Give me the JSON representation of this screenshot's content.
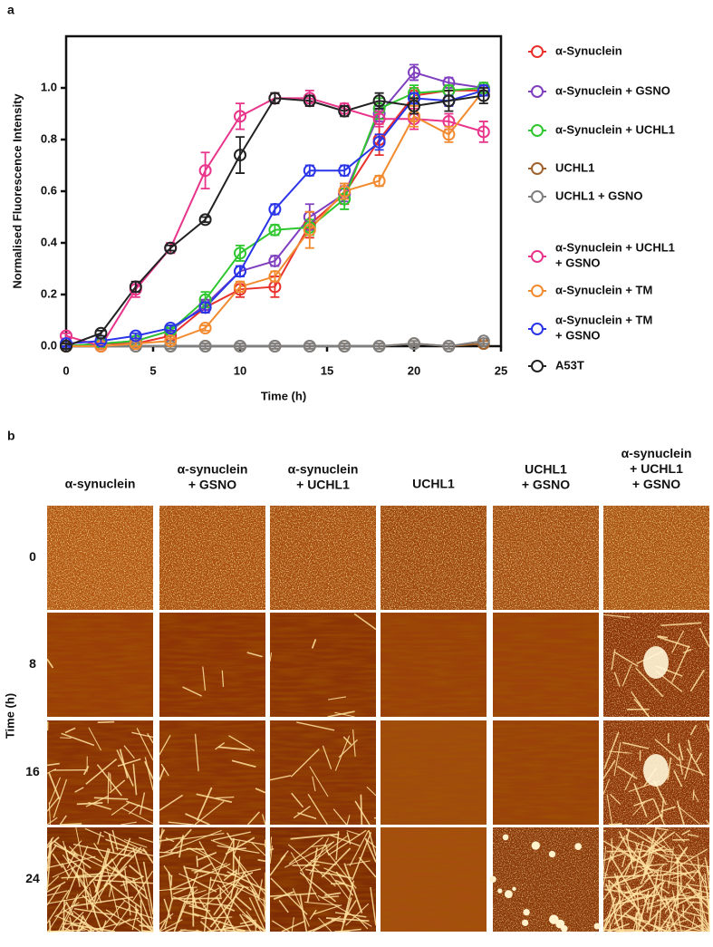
{
  "panel_labels": [
    "a",
    "b"
  ],
  "chart_data": {
    "type": "line",
    "xlabel": "Time (h)",
    "ylabel": "Normalised Fluorescence Intensity",
    "x": [
      0,
      2,
      4,
      6,
      8,
      10,
      12,
      14,
      16,
      18,
      20,
      22,
      24
    ],
    "xlim": [
      0,
      25
    ],
    "xticks": [
      0,
      5,
      10,
      15,
      20,
      25
    ],
    "ylim": [
      0,
      1.2
    ],
    "yticks": [
      {
        "value": 0,
        "label": "0.0"
      },
      {
        "value": 0.2,
        "label": "0.2"
      },
      {
        "value": 0.4,
        "label": "0.4"
      },
      {
        "value": 0.6,
        "label": "0.6"
      },
      {
        "value": 0.8,
        "label": "0.8"
      },
      {
        "value": 1.0,
        "label": "1.0"
      }
    ],
    "legend": "right",
    "series": [
      {
        "name": "α-Synuclein",
        "color": "#e8312c",
        "values": [
          0.0,
          0.01,
          0.01,
          0.04,
          0.15,
          0.22,
          0.23,
          0.47,
          0.59,
          0.8,
          0.97,
          0.99,
          0.99
        ],
        "errors": [
          0.01,
          0.01,
          0.01,
          0.01,
          0.02,
          0.03,
          0.04,
          0.05,
          0.04,
          0.06,
          0.03,
          0.02,
          0.02
        ]
      },
      {
        "name": "α-Synuclein + GSNO",
        "color": "#7f3fbf",
        "values": [
          0.0,
          0.01,
          0.02,
          0.06,
          0.16,
          0.29,
          0.33,
          0.5,
          0.59,
          0.9,
          1.06,
          1.02,
          1.0
        ],
        "errors": [
          0.01,
          0.01,
          0.01,
          0.01,
          0.02,
          0.02,
          0.02,
          0.05,
          0.03,
          0.03,
          0.03,
          0.02,
          0.02
        ]
      },
      {
        "name": "α-Synuclein + UCHL1",
        "color": "#2fc72f",
        "values": [
          0.0,
          0.01,
          0.02,
          0.06,
          0.18,
          0.36,
          0.45,
          0.46,
          0.57,
          0.92,
          0.98,
          0.99,
          1.0
        ],
        "errors": [
          0.01,
          0.01,
          0.01,
          0.01,
          0.03,
          0.03,
          0.02,
          0.03,
          0.04,
          0.04,
          0.03,
          0.02,
          0.02
        ]
      },
      {
        "name": "UCHL1",
        "color": "#a0622d",
        "values": [
          0.0,
          0.0,
          0.0,
          0.0,
          0.0,
          0.0,
          0.0,
          0.0,
          0.0,
          0.0,
          0.01,
          0.0,
          0.01
        ],
        "errors": [
          0.01,
          0.01,
          0.01,
          0.01,
          0.01,
          0.01,
          0.01,
          0.01,
          0.01,
          0.01,
          0.01,
          0.01,
          0.01
        ]
      },
      {
        "name": "UCHL1 + GSNO",
        "color": "#7f7f7f",
        "values": [
          0.0,
          0.0,
          0.0,
          0.0,
          0.0,
          0.0,
          0.0,
          0.0,
          0.0,
          0.0,
          0.01,
          0.0,
          0.02
        ],
        "errors": [
          0.01,
          0.01,
          0.01,
          0.01,
          0.01,
          0.01,
          0.01,
          0.01,
          0.01,
          0.01,
          0.01,
          0.01,
          0.01
        ]
      },
      {
        "name": "α-Synuclein + UCHL1\n+ GSNO",
        "color": "#e8348a",
        "values": [
          0.04,
          0.0,
          0.22,
          0.38,
          0.68,
          0.89,
          0.96,
          0.96,
          0.92,
          0.88,
          0.88,
          0.87,
          0.83
        ],
        "errors": [
          0.01,
          0.01,
          0.03,
          0.02,
          0.07,
          0.05,
          0.02,
          0.03,
          0.02,
          0.03,
          0.04,
          0.03,
          0.04
        ]
      },
      {
        "name": "α-Synuclein + TM",
        "color": "#f28b30",
        "values": [
          0.0,
          0.0,
          0.01,
          0.02,
          0.07,
          0.23,
          0.27,
          0.45,
          0.6,
          0.64,
          0.89,
          0.82,
          0.99
        ],
        "errors": [
          0.01,
          0.01,
          0.01,
          0.01,
          0.01,
          0.02,
          0.02,
          0.07,
          0.03,
          0.02,
          0.04,
          0.03,
          0.02
        ]
      },
      {
        "name": "α-Synuclein + TM\n+ GSNO",
        "color": "#2b35e8",
        "values": [
          0.01,
          0.02,
          0.04,
          0.07,
          0.15,
          0.29,
          0.53,
          0.68,
          0.68,
          0.79,
          0.96,
          0.95,
          0.99
        ],
        "errors": [
          0.01,
          0.01,
          0.01,
          0.01,
          0.02,
          0.02,
          0.02,
          0.02,
          0.02,
          0.03,
          0.02,
          0.02,
          0.02
        ]
      },
      {
        "name": "A53T",
        "color": "#222222",
        "values": [
          0.0,
          0.05,
          0.23,
          0.38,
          0.49,
          0.74,
          0.96,
          0.95,
          0.91,
          0.95,
          0.93,
          0.95,
          0.97
        ],
        "errors": [
          0.01,
          0.01,
          0.02,
          0.01,
          0.01,
          0.07,
          0.02,
          0.02,
          0.02,
          0.03,
          0.03,
          0.04,
          0.03
        ]
      }
    ]
  },
  "afm": {
    "row_axis_label": "Time (h)",
    "columns": [
      "α-synuclein",
      "α-synuclein\n+ GSNO",
      "α-synuclein\n+ UCHL1",
      "UCHL1",
      "UCHL1\n+ GSNO",
      "α-synuclein\n+ UCHL1\n+ GSNO"
    ],
    "rows": [
      "0",
      "8",
      "16",
      "24"
    ]
  }
}
